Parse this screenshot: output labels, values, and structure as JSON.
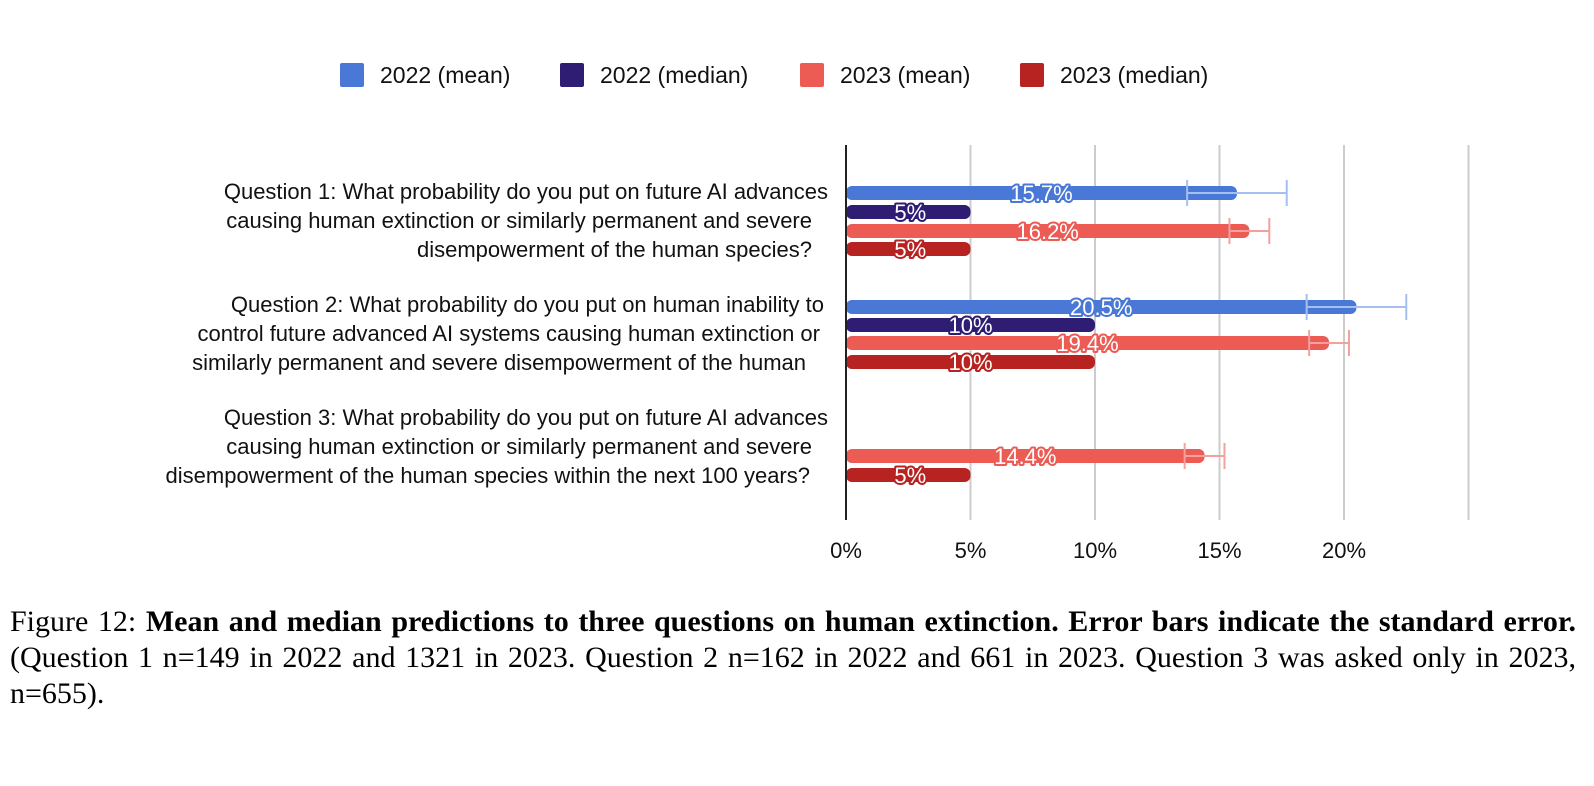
{
  "chart_data": {
    "type": "bar",
    "orientation": "horizontal",
    "legend": {
      "position": "top",
      "entries": [
        {
          "label": "2022 (mean)",
          "color": "#4a78d6"
        },
        {
          "label": "2022 (median)",
          "color": "#2f1d74"
        },
        {
          "label": "2023 (mean)",
          "color": "#ec5b54"
        },
        {
          "label": "2023 (median)",
          "color": "#b72320"
        }
      ]
    },
    "categories": [
      {
        "label_lines": [
          "Question 1: What probability do you put on future AI advances",
          "causing human extinction or similarly permanent and severe",
          "disempowerment of the human species?"
        ],
        "bars": [
          {
            "series": "2022 (mean)",
            "value": 15.7,
            "label": "15.7%",
            "error": [
              13.7,
              17.7
            ]
          },
          {
            "series": "2022 (median)",
            "value": 5,
            "label": "5%"
          },
          {
            "series": "2023 (mean)",
            "value": 16.2,
            "label": "16.2%",
            "error": [
              15.4,
              17.0
            ]
          },
          {
            "series": "2023 (median)",
            "value": 5,
            "label": "5%"
          }
        ]
      },
      {
        "label_lines": [
          "Question 2: What probability do you put on human inability to",
          "control future advanced AI systems causing human extinction or",
          "similarly permanent and severe disempowerment of the human"
        ],
        "bars": [
          {
            "series": "2022 (mean)",
            "value": 20.5,
            "label": "20.5%",
            "error": [
              18.5,
              22.5
            ]
          },
          {
            "series": "2022 (median)",
            "value": 10,
            "label": "10%"
          },
          {
            "series": "2023 (mean)",
            "value": 19.4,
            "label": "19.4%",
            "error": [
              18.6,
              20.2
            ]
          },
          {
            "series": "2023 (median)",
            "value": 10,
            "label": "10%"
          }
        ]
      },
      {
        "label_lines": [
          "Question 3: What probability do you put on future AI advances",
          "causing human extinction or similarly permanent and severe",
          "disempowerment of the human species within the next 100 years?"
        ],
        "bars": [
          {
            "series": "2023 (mean)",
            "value": 14.4,
            "label": "14.4%",
            "error": [
              13.6,
              15.2
            ]
          },
          {
            "series": "2023 (median)",
            "value": 5,
            "label": "5%"
          }
        ]
      }
    ],
    "xlim": [
      0,
      25
    ],
    "xticks": [
      0,
      5,
      10,
      15,
      20,
      25
    ],
    "xtick_labels": [
      "0%",
      "5%",
      "10%",
      "15%",
      "20%",
      ""
    ],
    "grid": true
  },
  "caption": {
    "prefix": "Figure 12: ",
    "bold": "Mean and median predictions to three questions on human extinction. Error bars indicate the standard error.",
    "rest": " (Question 1 n=149 in 2022 and 1321 in 2023. Question 2 n=162 in 2022 and 661 in 2023. Question 3 was asked only in 2023, n=655)."
  }
}
